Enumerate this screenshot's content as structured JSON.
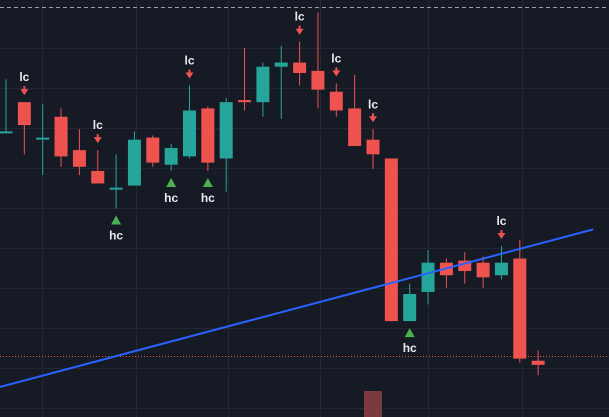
{
  "chart_data": {
    "type": "candlestick",
    "grid": true,
    "colors": {
      "background": "#161a25",
      "grid": "#232733",
      "up": "#26a69a",
      "down": "#ef5350",
      "trendline": "#2962ff",
      "buy_marker": "#4caf50",
      "sell_marker": "#ef5350",
      "price_line": "#ef5350",
      "volume_bar": "#7a3a3f",
      "label": "#e8eaed"
    },
    "price_axis": {
      "min": 0,
      "max": 100
    },
    "candles": [
      {
        "open": 68.5,
        "high": 81,
        "low": 68.5,
        "close": 68.5
      },
      {
        "open": 75.5,
        "high": 75.5,
        "low": 63,
        "close": 70
      },
      {
        "open": 67,
        "high": 75,
        "low": 58,
        "close": 67
      },
      {
        "open": 72,
        "high": 74,
        "low": 60,
        "close": 62.5
      },
      {
        "open": 64,
        "high": 69,
        "low": 58,
        "close": 60
      },
      {
        "open": 59,
        "high": 64,
        "low": 56,
        "close": 56
      },
      {
        "open": 55,
        "high": 63,
        "low": 50,
        "close": 55
      },
      {
        "open": 55.5,
        "high": 68.5,
        "low": 55.5,
        "close": 66.5
      },
      {
        "open": 67,
        "high": 67.5,
        "low": 60,
        "close": 61
      },
      {
        "open": 60.5,
        "high": 65.5,
        "low": 59,
        "close": 64.5
      },
      {
        "open": 62.5,
        "high": 79.5,
        "low": 62,
        "close": 73.5
      },
      {
        "open": 74,
        "high": 74.5,
        "low": 59,
        "close": 61
      },
      {
        "open": 62,
        "high": 76.5,
        "low": 54,
        "close": 75.5
      },
      {
        "open": 76,
        "high": 88.5,
        "low": 73.5,
        "close": 75.5
      },
      {
        "open": 75.5,
        "high": 85,
        "low": 72,
        "close": 84
      },
      {
        "open": 84,
        "high": 89,
        "low": 71.5,
        "close": 85
      },
      {
        "open": 85,
        "high": 90,
        "low": 79.5,
        "close": 82.5
      },
      {
        "open": 83,
        "high": 97,
        "low": 74,
        "close": 78.5
      },
      {
        "open": 78,
        "high": 80,
        "low": 72,
        "close": 73.5
      },
      {
        "open": 74,
        "high": 82,
        "low": 65,
        "close": 65
      },
      {
        "open": 66.5,
        "high": 69,
        "low": 59.5,
        "close": 63
      },
      {
        "open": 62,
        "high": 62,
        "low": 23,
        "close": 23
      },
      {
        "open": 23,
        "high": 32,
        "low": 23,
        "close": 29.5
      },
      {
        "open": 30,
        "high": 40,
        "low": 27,
        "close": 37
      },
      {
        "open": 37,
        "high": 38,
        "low": 31,
        "close": 34
      },
      {
        "open": 37.5,
        "high": 39.5,
        "low": 32,
        "close": 35
      },
      {
        "open": 37,
        "high": 38.5,
        "low": 31,
        "close": 33.5
      },
      {
        "open": 34,
        "high": 41,
        "low": 33,
        "close": 37
      },
      {
        "open": 38,
        "high": 42.5,
        "low": 13,
        "close": 14
      },
      {
        "open": 13.5,
        "high": 16,
        "low": 10,
        "close": 12.5
      }
    ],
    "signals": [
      {
        "type": "lc",
        "candle": 1,
        "label": "lc"
      },
      {
        "type": "lc",
        "candle": 5,
        "label": "lc"
      },
      {
        "type": "hc",
        "candle": 6,
        "label": "hc"
      },
      {
        "type": "hc",
        "candle": 9,
        "label": "hc"
      },
      {
        "type": "lc",
        "candle": 10,
        "label": "lc"
      },
      {
        "type": "hc",
        "candle": 11,
        "label": "hc"
      },
      {
        "type": "lc",
        "candle": 16,
        "label": "lc"
      },
      {
        "type": "lc",
        "candle": 18,
        "label": "lc"
      },
      {
        "type": "lc",
        "candle": 20,
        "label": "lc"
      },
      {
        "type": "hc",
        "candle": 22,
        "label": "hc"
      },
      {
        "type": "lc",
        "candle": 27,
        "label": "lc"
      }
    ],
    "trendline": {
      "from": {
        "candle": -0.5,
        "price": 7
      },
      "to": {
        "candle": 32,
        "price": 45
      }
    },
    "price_line": 14.5,
    "volume_bars": [
      {
        "candle": 20,
        "level": 0.6
      }
    ]
  }
}
